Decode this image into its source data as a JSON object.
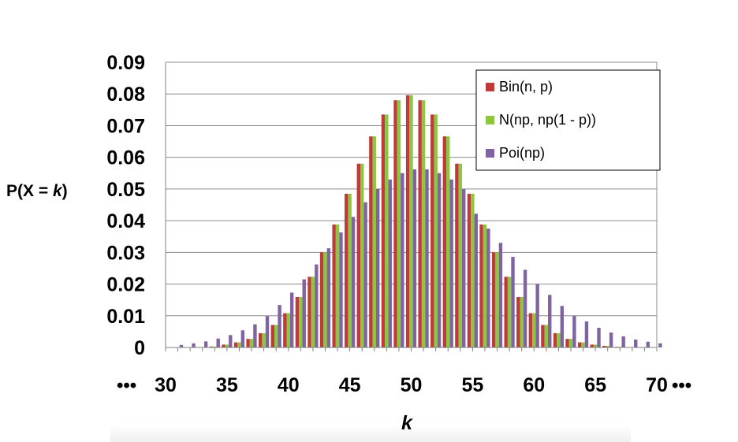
{
  "chart_data": {
    "type": "bar",
    "ylabel_prefix": "P(X = ",
    "ylabel_var": "k",
    "ylabel_suffix": ")",
    "xlabel": "k",
    "ylim": [
      0,
      0.09
    ],
    "yticks": [
      "0",
      "0.01",
      "0.02",
      "0.03",
      "0.04",
      "0.05",
      "0.06",
      "0.07",
      "0.08",
      "0.09"
    ],
    "xticks": [
      30,
      35,
      40,
      45,
      50,
      55,
      60,
      65,
      70
    ],
    "xlim": [
      30,
      70
    ],
    "ellipsis_left": "•••",
    "ellipsis_right": "•••",
    "grid": true,
    "legend_position": "top-right",
    "series": [
      {
        "name": "Bin(n, p)",
        "color": "#c0393b",
        "x": [
          31,
          32,
          33,
          34,
          35,
          36,
          37,
          38,
          39,
          40,
          41,
          42,
          43,
          44,
          45,
          46,
          47,
          48,
          49,
          50,
          51,
          52,
          53,
          54,
          55,
          56,
          57,
          58,
          59,
          60,
          61,
          62,
          63,
          64,
          65,
          66,
          67,
          68,
          69,
          70
        ],
        "values": [
          0.0,
          0.0,
          0.0,
          0.0003,
          0.0009,
          0.0016,
          0.0027,
          0.0045,
          0.0071,
          0.0108,
          0.0159,
          0.0223,
          0.03,
          0.0388,
          0.0485,
          0.058,
          0.0666,
          0.0735,
          0.078,
          0.0796,
          0.078,
          0.0735,
          0.0666,
          0.058,
          0.0485,
          0.0388,
          0.03,
          0.0223,
          0.0159,
          0.0108,
          0.0071,
          0.0045,
          0.0027,
          0.0016,
          0.0009,
          0.0005,
          0.0002,
          0.0001,
          0.0,
          0.0
        ]
      },
      {
        "name": "N(np, np(1 - p))",
        "color": "#8dc63f",
        "x": [
          31,
          32,
          33,
          34,
          35,
          36,
          37,
          38,
          39,
          40,
          41,
          42,
          43,
          44,
          45,
          46,
          47,
          48,
          49,
          50,
          51,
          52,
          53,
          54,
          55,
          56,
          57,
          58,
          59,
          60,
          61,
          62,
          63,
          64,
          65,
          66,
          67,
          68,
          69,
          70
        ],
        "values": [
          0.0,
          0.0,
          0.0,
          0.0003,
          0.0009,
          0.0016,
          0.0027,
          0.0045,
          0.0071,
          0.0108,
          0.0159,
          0.0223,
          0.03,
          0.0388,
          0.0485,
          0.058,
          0.0666,
          0.0735,
          0.078,
          0.0796,
          0.078,
          0.0735,
          0.0666,
          0.058,
          0.0485,
          0.0388,
          0.03,
          0.0223,
          0.0159,
          0.0108,
          0.0071,
          0.0045,
          0.0027,
          0.0016,
          0.0009,
          0.0005,
          0.0002,
          0.0001,
          0.0,
          0.0
        ]
      },
      {
        "name": "Poi(np)",
        "color": "#8064a2",
        "x": [
          31,
          32,
          33,
          34,
          35,
          36,
          37,
          38,
          39,
          40,
          41,
          42,
          43,
          44,
          45,
          46,
          47,
          48,
          49,
          50,
          51,
          52,
          53,
          54,
          55,
          56,
          57,
          58,
          59,
          60,
          61,
          62,
          63,
          64,
          65,
          66,
          67,
          68,
          69,
          70
        ],
        "values": [
          0.0008,
          0.0013,
          0.0019,
          0.0028,
          0.0039,
          0.0054,
          0.0073,
          0.0099,
          0.0134,
          0.0173,
          0.0215,
          0.0262,
          0.0313,
          0.0363,
          0.0412,
          0.0458,
          0.05,
          0.053,
          0.055,
          0.0562,
          0.0562,
          0.055,
          0.053,
          0.05,
          0.0422,
          0.0375,
          0.033,
          0.0286,
          0.0245,
          0.02,
          0.0166,
          0.0131,
          0.01,
          0.0082,
          0.0062,
          0.0047,
          0.0035,
          0.0025,
          0.0018,
          0.0013
        ]
      }
    ]
  }
}
